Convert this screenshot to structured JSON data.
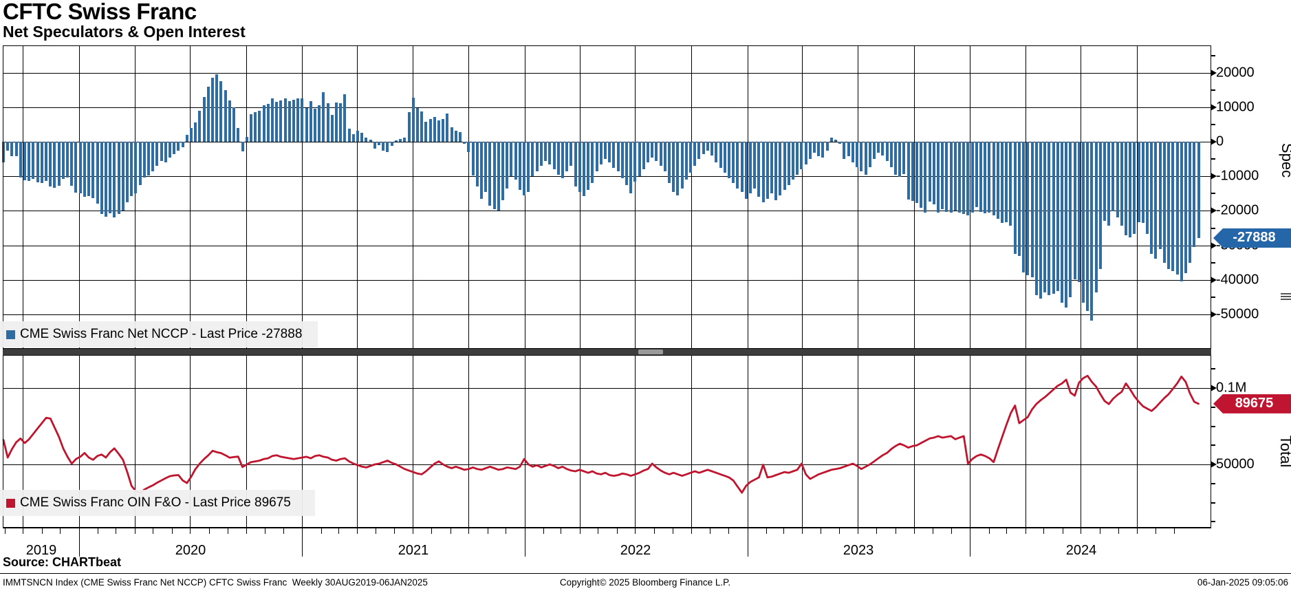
{
  "title": "CFTC Swiss Franc",
  "subtitle": "Net Speculators & Open Interest",
  "chart_data": [
    {
      "type": "bar",
      "panel": "top",
      "name": "CME Swiss Franc Net NCCP",
      "legend": "CME Swiss Franc Net NCCP - Last Price -27888",
      "last_price": -27888,
      "badge_label": "-27888",
      "axis_label": "Spec",
      "color": "#2E6CA4",
      "frequency": "Weekly",
      "x_start": "30AUG2019",
      "x_end": "06JAN2025",
      "ylim": [
        -60000,
        28000
      ],
      "yticks_major": [
        20000,
        10000,
        0,
        -10000,
        -20000,
        -30000,
        -40000,
        -50000
      ],
      "ytick_labels": [
        "20000",
        "10000",
        "0",
        "-10000",
        "-20000",
        "-30000",
        "-40000",
        "-50000"
      ],
      "grid": true,
      "legend_position": "bottom-left",
      "values": [
        -6000,
        -2500,
        -4200,
        -4100,
        -10300,
        -11200,
        -11300,
        -10800,
        -11700,
        -12000,
        -11300,
        -13000,
        -13300,
        -12700,
        -10700,
        -10300,
        -12700,
        -14700,
        -15000,
        -16000,
        -15700,
        -16300,
        -18000,
        -21000,
        -21700,
        -20700,
        -22000,
        -21000,
        -20000,
        -17500,
        -15700,
        -15000,
        -12500,
        -10300,
        -9700,
        -8500,
        -7000,
        -5500,
        -6000,
        -4500,
        -3500,
        -2500,
        -1500,
        2000,
        4000,
        5500,
        9000,
        13000,
        16000,
        18500,
        19500,
        17500,
        15000,
        12000,
        10000,
        4000,
        -2700,
        1300,
        8000,
        8500,
        9000,
        10500,
        11000,
        12500,
        11500,
        12000,
        12500,
        11800,
        12100,
        12600,
        12500,
        9700,
        11800,
        9500,
        10500,
        14300,
        11100,
        7800,
        11300,
        11100,
        13700,
        3700,
        2100,
        3100,
        2600,
        1100,
        500,
        -1900,
        -900,
        -2500,
        -2900,
        -1200,
        300,
        700,
        1100,
        8500,
        12700,
        9800,
        8700,
        5700,
        6500,
        7100,
        6100,
        6600,
        8100,
        4100,
        3100,
        2800,
        -500,
        -3000,
        -9800,
        -13000,
        -16500,
        -14500,
        -18500,
        -19500,
        -20000,
        -17000,
        -13500,
        -10000,
        -11000,
        -14000,
        -15500,
        -14500,
        -10000,
        -8500,
        -7000,
        -5500,
        -6500,
        -8000,
        -9500,
        -10500,
        -8500,
        -7000,
        -13000,
        -14500,
        -15800,
        -14000,
        -12000,
        -8500,
        -6500,
        -5000,
        -6000,
        -7500,
        -8500,
        -10500,
        -12500,
        -15000,
        -11500,
        -10000,
        -8000,
        -6000,
        -4500,
        -5500,
        -7000,
        -8500,
        -12000,
        -14500,
        -15500,
        -13500,
        -11000,
        -9000,
        -7000,
        -5000,
        -3500,
        -2500,
        -4000,
        -6000,
        -7500,
        -9000,
        -10500,
        -12000,
        -13500,
        -14500,
        -16500,
        -15000,
        -13500,
        -16000,
        -17500,
        -16500,
        -15000,
        -17000,
        -15500,
        -14000,
        -12500,
        -11000,
        -9500,
        -8000,
        -6500,
        -5000,
        -3200,
        -4200,
        -4550,
        -2500,
        1200,
        550,
        -500,
        -4900,
        -4200,
        -5900,
        -7300,
        -8600,
        -9650,
        -7300,
        -4900,
        -3200,
        -3900,
        -5600,
        -7300,
        -9650,
        -10100,
        -9300,
        -16800,
        -17150,
        -17800,
        -19200,
        -20550,
        -17350,
        -18150,
        -20550,
        -19500,
        -20350,
        -20550,
        -19850,
        -20550,
        -20900,
        -21250,
        -20550,
        -18850,
        -20400,
        -20750,
        -20550,
        -21250,
        -22250,
        -23600,
        -23250,
        -24300,
        -32450,
        -33150,
        -37900,
        -38700,
        -39250,
        -44350,
        -45350,
        -43650,
        -44350,
        -44000,
        -43300,
        -46700,
        -48100,
        -45000,
        -39900,
        -40600,
        -46700,
        -49100,
        -51800,
        -43650,
        -36850,
        -22900,
        -24300,
        -20200,
        -21900,
        -24300,
        -27000,
        -27700,
        -26650,
        -23250,
        -23600,
        -26650,
        -32450,
        -33800,
        -31100,
        -35150,
        -36850,
        -37500,
        -38500,
        -40500,
        -38000,
        -35000,
        -30500,
        -27888
      ]
    },
    {
      "type": "line",
      "panel": "bottom",
      "name": "CME Swiss Franc OIN F&O",
      "legend": "CME Swiss Franc OIN F&O - Last Price 89675",
      "last_price": 89675,
      "badge_label": "89675",
      "axis_label": "Total",
      "color": "#C0152E",
      "frequency": "Weekly",
      "x_start": "30AUG2019",
      "x_end": "06JAN2025",
      "ylim": [
        0,
        123000
      ],
      "yticks_major": [
        100000,
        50000
      ],
      "ytick_labels": [
        "0.1M",
        "50000"
      ],
      "grid": true,
      "legend_position": "bottom-left",
      "values": [
        66000,
        54500,
        60000,
        64500,
        67000,
        64000,
        66500,
        70000,
        73500,
        77000,
        80500,
        80000,
        74000,
        68000,
        60500,
        55000,
        50500,
        53500,
        55000,
        57500,
        54500,
        53000,
        55500,
        56500,
        54500,
        58000,
        60500,
        57000,
        53000,
        45000,
        36000,
        32500,
        31300,
        33500,
        35000,
        36300,
        38000,
        39500,
        41000,
        42300,
        42800,
        43000,
        39500,
        37800,
        42000,
        47000,
        50600,
        53500,
        56000,
        58900,
        58000,
        57400,
        56000,
        54400,
        54800,
        55100,
        48300,
        49900,
        51500,
        52000,
        52500,
        53500,
        54000,
        55500,
        56000,
        55000,
        54500,
        54000,
        53500,
        54000,
        54500,
        55000,
        54000,
        55500,
        56000,
        55000,
        54500,
        53000,
        52500,
        53500,
        54000,
        52000,
        50500,
        49500,
        48500,
        48000,
        49000,
        50000,
        50500,
        51500,
        52500,
        51000,
        50000,
        48500,
        47000,
        46000,
        45000,
        44000,
        43500,
        45500,
        48000,
        50500,
        52000,
        50000,
        48500,
        47500,
        48500,
        47500,
        46500,
        47000,
        48000,
        47000,
        46500,
        47500,
        48500,
        47500,
        46500,
        47000,
        48000,
        47500,
        47000,
        48500,
        53500,
        50000,
        48500,
        49500,
        48000,
        49000,
        50000,
        49000,
        47500,
        48500,
        47000,
        46000,
        45500,
        46500,
        45500,
        44500,
        45500,
        44000,
        43500,
        44500,
        43000,
        42500,
        43000,
        44000,
        43500,
        42500,
        43500,
        44500,
        46000,
        47000,
        50500,
        48000,
        46000,
        44500,
        43500,
        44500,
        43500,
        42500,
        43500,
        44500,
        45500,
        44500,
        45500,
        46500,
        45500,
        44500,
        43500,
        42500,
        41500,
        39500,
        35500,
        31500,
        36000,
        38500,
        40000,
        41500,
        49800,
        41500,
        42000,
        43000,
        44000,
        45000,
        44500,
        45500,
        46500,
        50500,
        43500,
        40500,
        42000,
        43500,
        44500,
        45500,
        46500,
        47000,
        47500,
        48500,
        49500,
        50500,
        49000,
        47000,
        48500,
        50000,
        52000,
        54000,
        56000,
        57500,
        60000,
        62000,
        63500,
        62500,
        61000,
        62000,
        62500,
        64000,
        65500,
        67000,
        67500,
        68500,
        67500,
        68000,
        68500,
        66500,
        67500,
        68500,
        50500,
        53500,
        55500,
        56500,
        55500,
        54000,
        51500,
        60000,
        68000,
        76000,
        83500,
        88500,
        77000,
        79000,
        81000,
        86000,
        89500,
        92000,
        94000,
        96500,
        99000,
        101500,
        103000,
        105500,
        97000,
        95000,
        103500,
        106500,
        108000,
        104000,
        101000,
        96000,
        91500,
        89500,
        93000,
        95500,
        97500,
        103000,
        99000,
        94500,
        91000,
        88000,
        86500,
        85000,
        87500,
        90500,
        93500,
        96000,
        99500,
        103000,
        107500,
        104000,
        96500,
        91000,
        89675
      ]
    }
  ],
  "x_axis": {
    "years": [
      "2019",
      "2020",
      "2021",
      "2022",
      "2023",
      "2024"
    ]
  },
  "footer": {
    "source": "Source: CHARTbeat",
    "left": "IMMTSNCN Index (CME Swiss Franc Net NCCP) CFTC Swiss Franc  Weekly 30AUG2019-06JAN2025",
    "center": "Copyright© 2025 Bloomberg Finance L.P.",
    "right": "06-Jan-2025 09:05:06"
  }
}
